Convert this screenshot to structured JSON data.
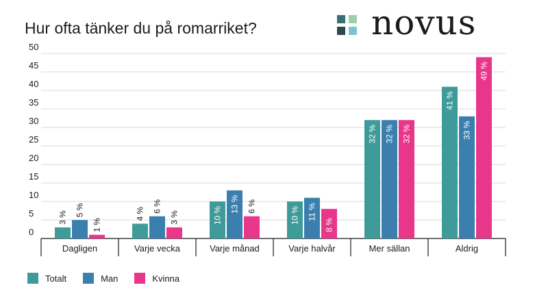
{
  "title": "Hur ofta tänker du på romarriket?",
  "logo": {
    "text": "novus",
    "colors": [
      "#3a6f73",
      "#2a4a4c",
      "#9ccfa8",
      "#7cc4cf"
    ]
  },
  "chart_data": {
    "type": "bar",
    "title": "Hur ofta tänker du på romarriket?",
    "categories": [
      "Dagligen",
      "Varje vecka",
      "Varje månad",
      "Varje halvår",
      "Mer sällan",
      "Aldrig"
    ],
    "series": [
      {
        "name": "Totalt",
        "color": "#3f9a9a",
        "values": [
          3,
          4,
          10,
          10,
          32,
          41
        ]
      },
      {
        "name": "Man",
        "color": "#3a7fae",
        "values": [
          5,
          6,
          13,
          11,
          32,
          33
        ]
      },
      {
        "name": "Kvinna",
        "color": "#e8368a",
        "values": [
          1,
          3,
          6,
          8,
          32,
          49
        ]
      }
    ],
    "ylim": [
      0,
      50
    ],
    "yticks": [
      0,
      5,
      10,
      15,
      20,
      25,
      30,
      35,
      40,
      45,
      50
    ],
    "value_suffix": " %",
    "grid": true,
    "legend_position": "bottom-left"
  }
}
